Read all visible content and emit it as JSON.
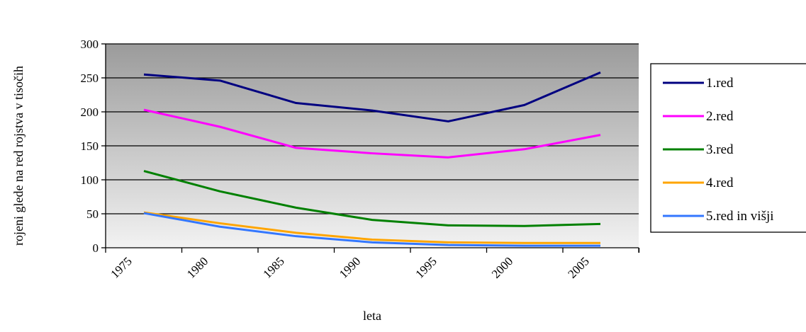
{
  "chart_data": {
    "type": "line",
    "title": "",
    "xlabel": "leta",
    "ylabel": "rojeni glede na red rojstva v tisočih",
    "xlim": [
      1975,
      2008
    ],
    "ylim": [
      0,
      300
    ],
    "x_ticks": [
      1975,
      1980,
      1985,
      1990,
      1995,
      2000,
      2005
    ],
    "y_ticks": [
      0,
      50,
      100,
      150,
      200,
      250,
      300
    ],
    "grid": "horizontal",
    "legend_position": "right",
    "series": [
      {
        "name": "1.red",
        "color": "#000080",
        "x": [
          1977,
          1982,
          1987,
          1992,
          1997,
          2002,
          2007
        ],
        "y": [
          255,
          246,
          213,
          202,
          186,
          210,
          258
        ]
      },
      {
        "name": "2.red",
        "color": "#ff00ff",
        "x": [
          1977,
          1982,
          1987,
          1992,
          1997,
          2002,
          2007
        ],
        "y": [
          203,
          178,
          147,
          139,
          133,
          145,
          166
        ]
      },
      {
        "name": "3.red",
        "color": "#008000",
        "x": [
          1977,
          1982,
          1987,
          1992,
          1997,
          2002,
          2007
        ],
        "y": [
          113,
          83,
          59,
          41,
          33,
          32,
          35
        ]
      },
      {
        "name": "4.red",
        "color": "#ffa500",
        "x": [
          1977,
          1982,
          1987,
          1992,
          1997,
          2002,
          2007
        ],
        "y": [
          52,
          36,
          22,
          12,
          8,
          7,
          7
        ]
      },
      {
        "name": "5.red in višji",
        "color": "#3377ff",
        "x": [
          1977,
          1982,
          1987,
          1992,
          1997,
          2002,
          2007
        ],
        "y": [
          51,
          31,
          17,
          8,
          4,
          3,
          3
        ]
      }
    ]
  }
}
